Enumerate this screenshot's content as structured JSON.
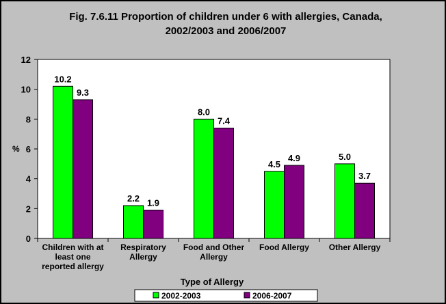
{
  "chart_data": {
    "type": "bar",
    "title": "Fig. 7.6.11 Proportion of children under 6 with allergies, Canada,",
    "subtitle": "2002/2003 and 2006/2007",
    "ylabel": "%",
    "xlabel": "Type of Allergy",
    "ylim": [
      0,
      12
    ],
    "yticks": [
      0,
      2,
      4,
      6,
      8,
      10,
      12
    ],
    "grid": false,
    "legend_position": "bottom",
    "categories": [
      [
        "Children with at",
        "least one",
        "reported allergy"
      ],
      [
        "Respiratory",
        "Allergy"
      ],
      [
        "Food and Other",
        "Allergy"
      ],
      [
        "Food Allergy"
      ],
      [
        "Other Allergy"
      ]
    ],
    "series": [
      {
        "name": "2002-2003",
        "color": "#00ff00",
        "values": [
          10.2,
          2.2,
          8.0,
          4.5,
          5.0
        ],
        "labels": [
          "10.2",
          "2.2",
          "8.0",
          "4.5",
          "5.0"
        ]
      },
      {
        "name": "2006-2007",
        "color": "#800080",
        "values": [
          9.3,
          1.9,
          7.4,
          4.9,
          3.7
        ],
        "labels": [
          "9.3",
          "1.9",
          "7.4",
          "4.9",
          "3.7"
        ]
      }
    ]
  },
  "colors": {
    "background": "#c0c0c0",
    "plot_background": "#ffffff"
  }
}
